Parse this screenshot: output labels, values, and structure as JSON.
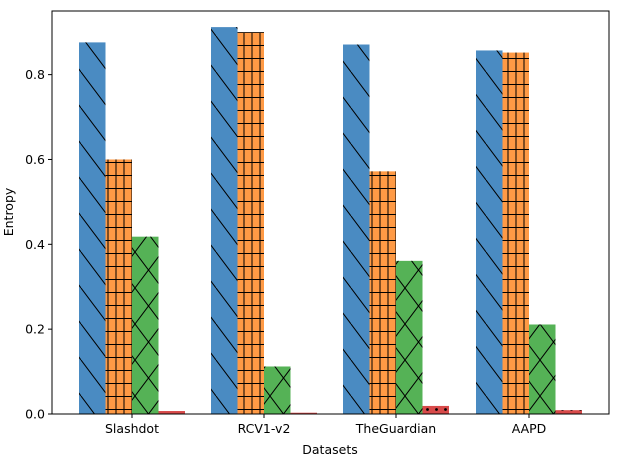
{
  "chart_data": {
    "type": "bar",
    "title": "",
    "xlabel": "Datasets",
    "ylabel": "Entropy",
    "categories": [
      "Slashdot",
      "RCV1-v2",
      "TheGuardian",
      "AAPD"
    ],
    "ylim": [
      0,
      0.95
    ],
    "yticks": [
      "0.0",
      "0.2",
      "0.4",
      "0.6",
      "0.8"
    ],
    "legend": "none",
    "grid": false,
    "series": [
      {
        "values": [
          0.876,
          0.912,
          0.871,
          0.857
        ],
        "color": "#4a8bc2",
        "hatch": "diagonal-backslash"
      },
      {
        "values": [
          0.6,
          0.9,
          0.572,
          0.852
        ],
        "color": "#ff9a45",
        "hatch": "grid"
      },
      {
        "values": [
          0.418,
          0.112,
          0.361,
          0.211
        ],
        "color": "#55b256",
        "hatch": "crosshatch-x"
      },
      {
        "values": [
          0.007,
          0.003,
          0.019,
          0.009
        ],
        "color": "#d84a4a",
        "hatch": "dots"
      }
    ]
  }
}
